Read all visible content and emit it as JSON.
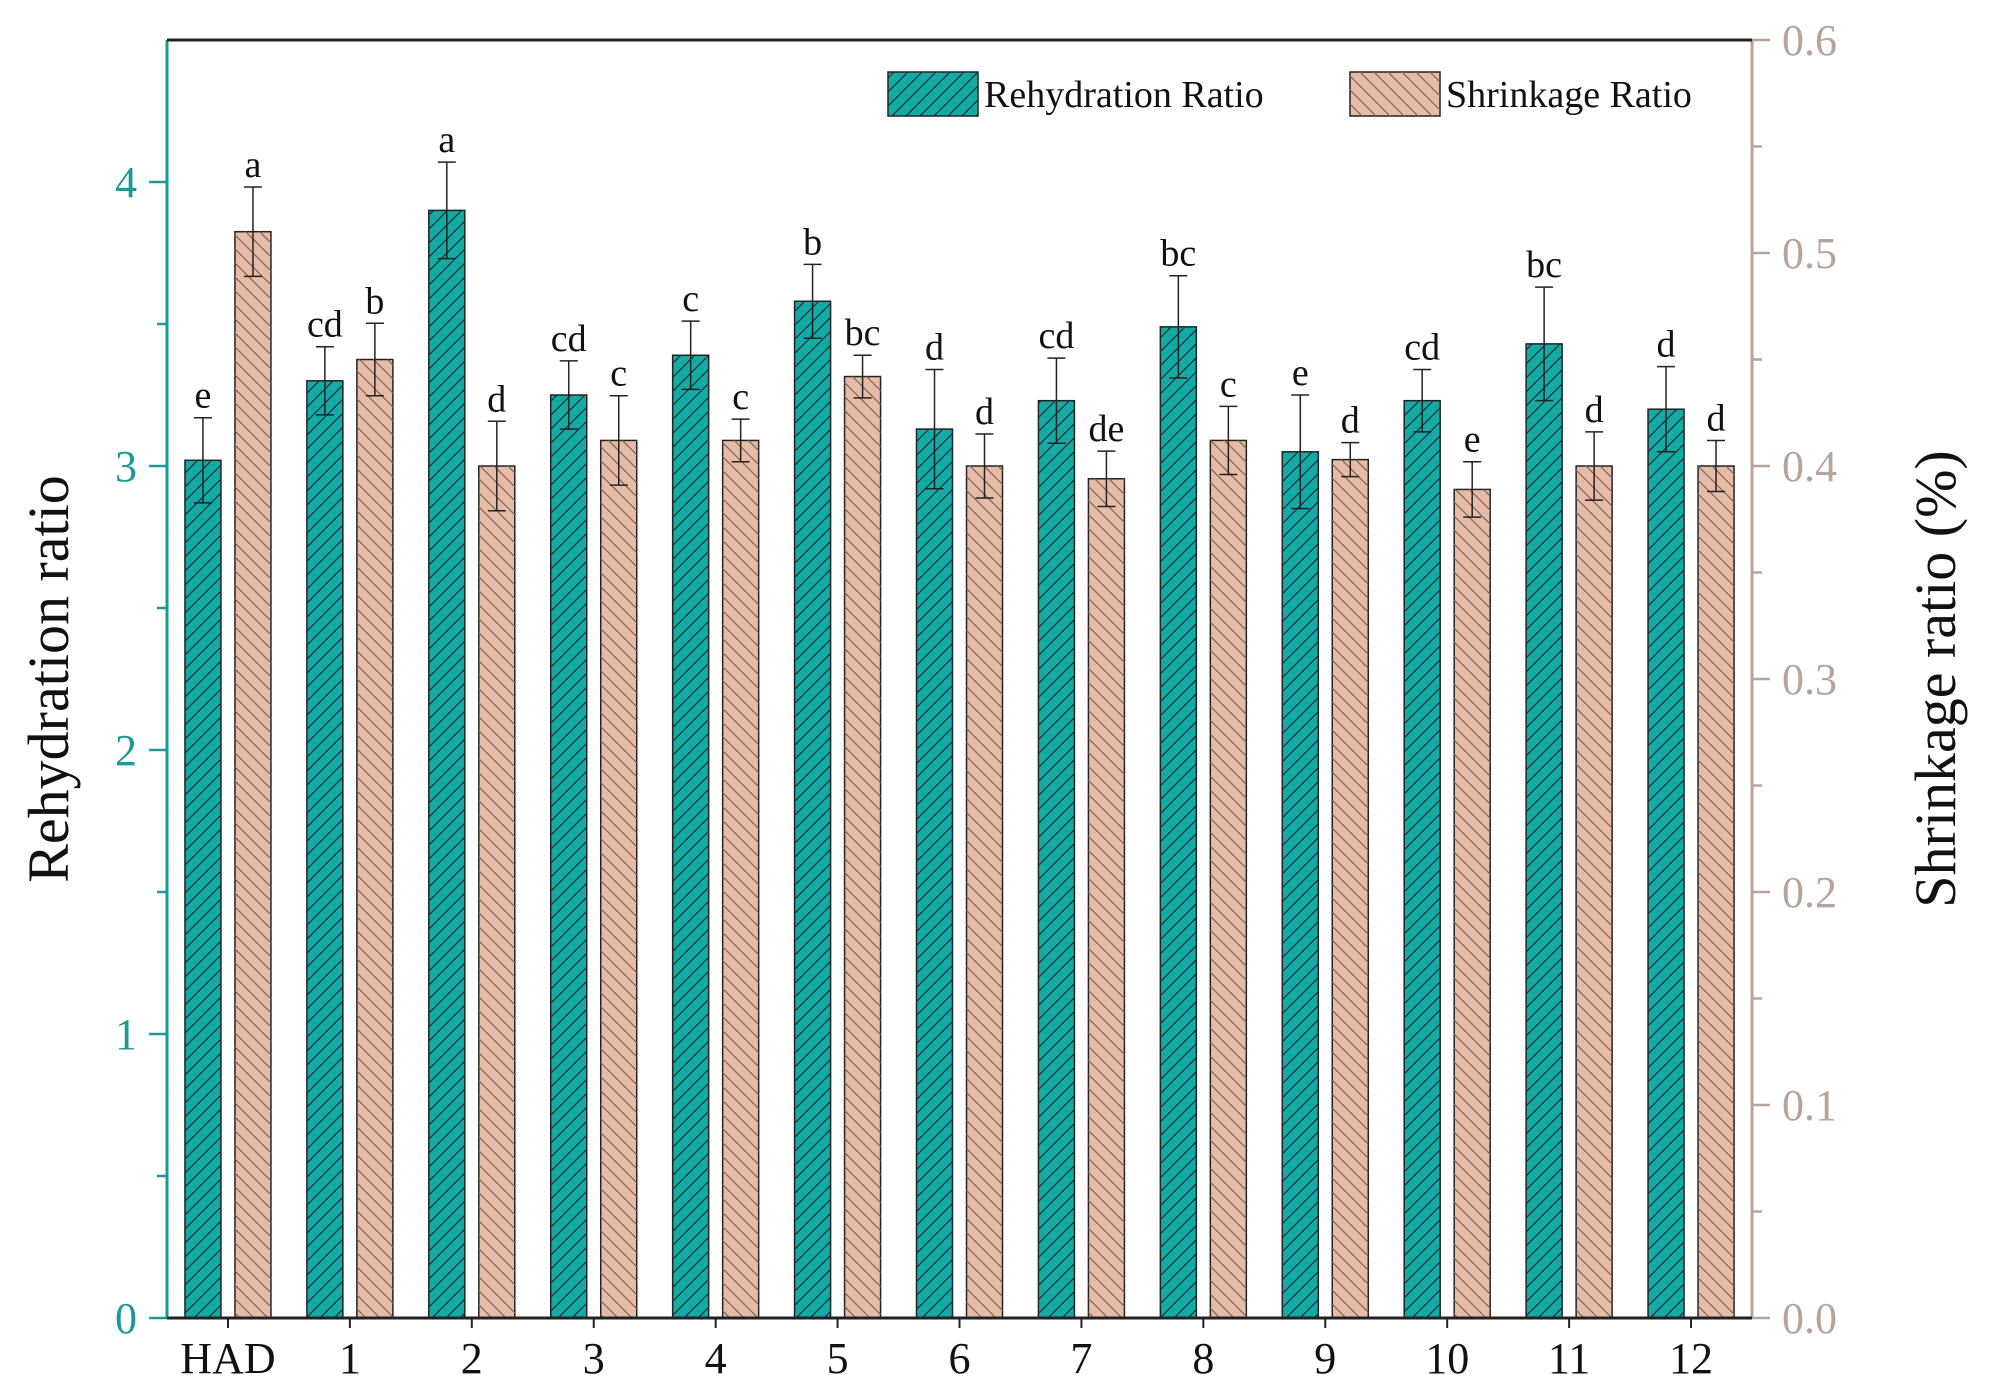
{
  "chart_data": {
    "type": "bar",
    "categories": [
      "HAD",
      "1",
      "2",
      "3",
      "4",
      "5",
      "6",
      "7",
      "8",
      "9",
      "10",
      "11",
      "12"
    ],
    "left_axis": {
      "label": "Rehydration ratio",
      "ylim": [
        0,
        4.5
      ],
      "ticks": [
        0,
        1,
        2,
        3,
        4
      ],
      "tick_labels": [
        "0",
        "1",
        "2",
        "3",
        "4"
      ],
      "color": "#1a9a96"
    },
    "right_axis": {
      "label": "Shrinkage ratio (%)",
      "ylim": [
        0.0,
        0.6
      ],
      "ticks": [
        0.0,
        0.1,
        0.2,
        0.3,
        0.4,
        0.5,
        0.6
      ],
      "tick_labels": [
        "0.0",
        "0.1",
        "0.2",
        "0.3",
        "0.4",
        "0.5",
        "0.6"
      ],
      "color": "#b8a398"
    },
    "series": [
      {
        "name": "Rehydration Ratio",
        "axis": "left",
        "color": "#14aaa6",
        "values": [
          3.02,
          3.3,
          3.9,
          3.25,
          3.39,
          3.58,
          3.13,
          3.23,
          3.49,
          3.05,
          3.23,
          3.43,
          3.2
        ],
        "errors": [
          0.15,
          0.12,
          0.17,
          0.12,
          0.12,
          0.13,
          0.21,
          0.15,
          0.18,
          0.2,
          0.11,
          0.2,
          0.15
        ],
        "labels": [
          "e",
          "cd",
          "a",
          "cd",
          "c",
          "b",
          "d",
          "cd",
          "bc",
          "e",
          "cd",
          "bc",
          "d"
        ]
      },
      {
        "name": "Shrinkage Ratio",
        "axis": "right",
        "color": "#e8bba6",
        "values": [
          0.51,
          0.45,
          0.4,
          0.412,
          0.412,
          0.442,
          0.4,
          0.394,
          0.412,
          0.403,
          0.389,
          0.4,
          0.4
        ],
        "errors": [
          0.021,
          0.017,
          0.021,
          0.021,
          0.01,
          0.01,
          0.015,
          0.013,
          0.016,
          0.008,
          0.013,
          0.016,
          0.012
        ],
        "labels": [
          "a",
          "b",
          "d",
          "c",
          "c",
          "bc",
          "d",
          "de",
          "c",
          "d",
          "e",
          "d",
          "d"
        ]
      }
    ],
    "legend": {
      "position": "top-right",
      "entries": [
        "Rehydration Ratio",
        "Shrinkage Ratio"
      ]
    },
    "grid": false
  }
}
